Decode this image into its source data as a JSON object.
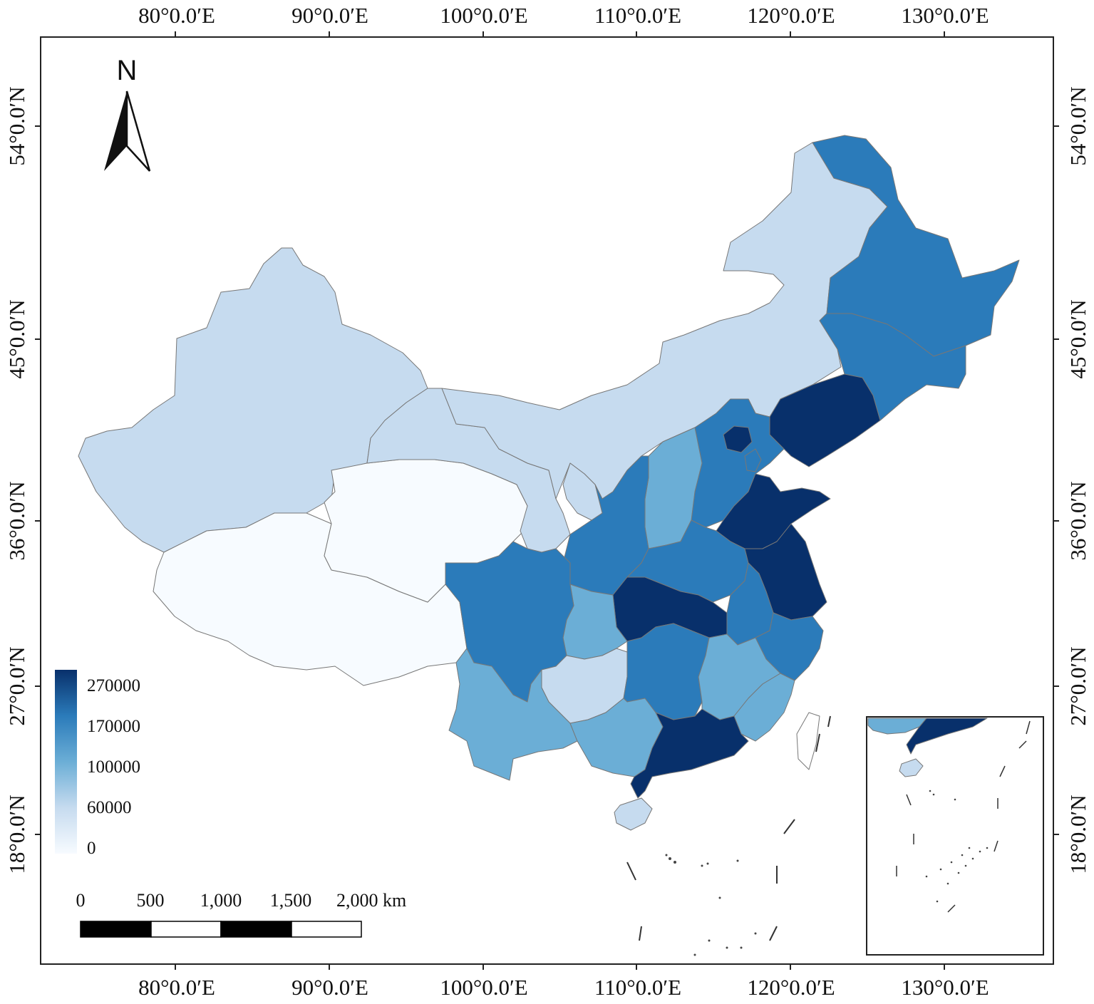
{
  "map": {
    "longitude_labels": [
      "80°0.0′E",
      "90°0.0′E",
      "100°0.0′E",
      "110°0.0′E",
      "120°0.0′E",
      "130°0.0′E"
    ],
    "latitude_labels": [
      "54°0.0′N",
      "45°0.0′N",
      "36°0.0′N",
      "27°0.0′N",
      "18°0.0′N"
    ],
    "north_arrow_label": "N"
  },
  "legend": {
    "breaks": [
      "270000",
      "170000",
      "100000",
      "60000",
      "0"
    ],
    "colors": [
      "#08306b",
      "#2b7bba",
      "#6baed6",
      "#c6dbef",
      "#f7fbff"
    ]
  },
  "scale_bar": {
    "labels": [
      "0",
      "500",
      "1,000",
      "1,500",
      "2,000 km"
    ]
  },
  "regions": {
    "xinjiang": "class-4",
    "tibet": "class-5",
    "qinghai": "class-5",
    "gansu": "class-4",
    "inner-mongolia": "class-4",
    "heilongjiang": "class-2",
    "jilin": "class-2",
    "liaoning": "class-1",
    "beijing": "class-1",
    "tianjin": "class-2",
    "hebei": "class-2",
    "shanxi": "class-3",
    "shaanxi": "class-2",
    "ningxia": "class-4",
    "shandong": "class-1",
    "henan": "class-2",
    "jiangsu": "class-1",
    "anhui": "class-2",
    "zhejiang": "class-2",
    "hubei": "class-1",
    "sichuan": "class-2",
    "chongqing": "class-3",
    "guizhou": "class-4",
    "yunnan": "class-3",
    "hunan": "class-2",
    "jiangxi": "class-3",
    "fujian": "class-3",
    "guangxi": "class-3",
    "guangdong": "class-1",
    "hainan": "class-4",
    "taiwan": "class-none"
  }
}
